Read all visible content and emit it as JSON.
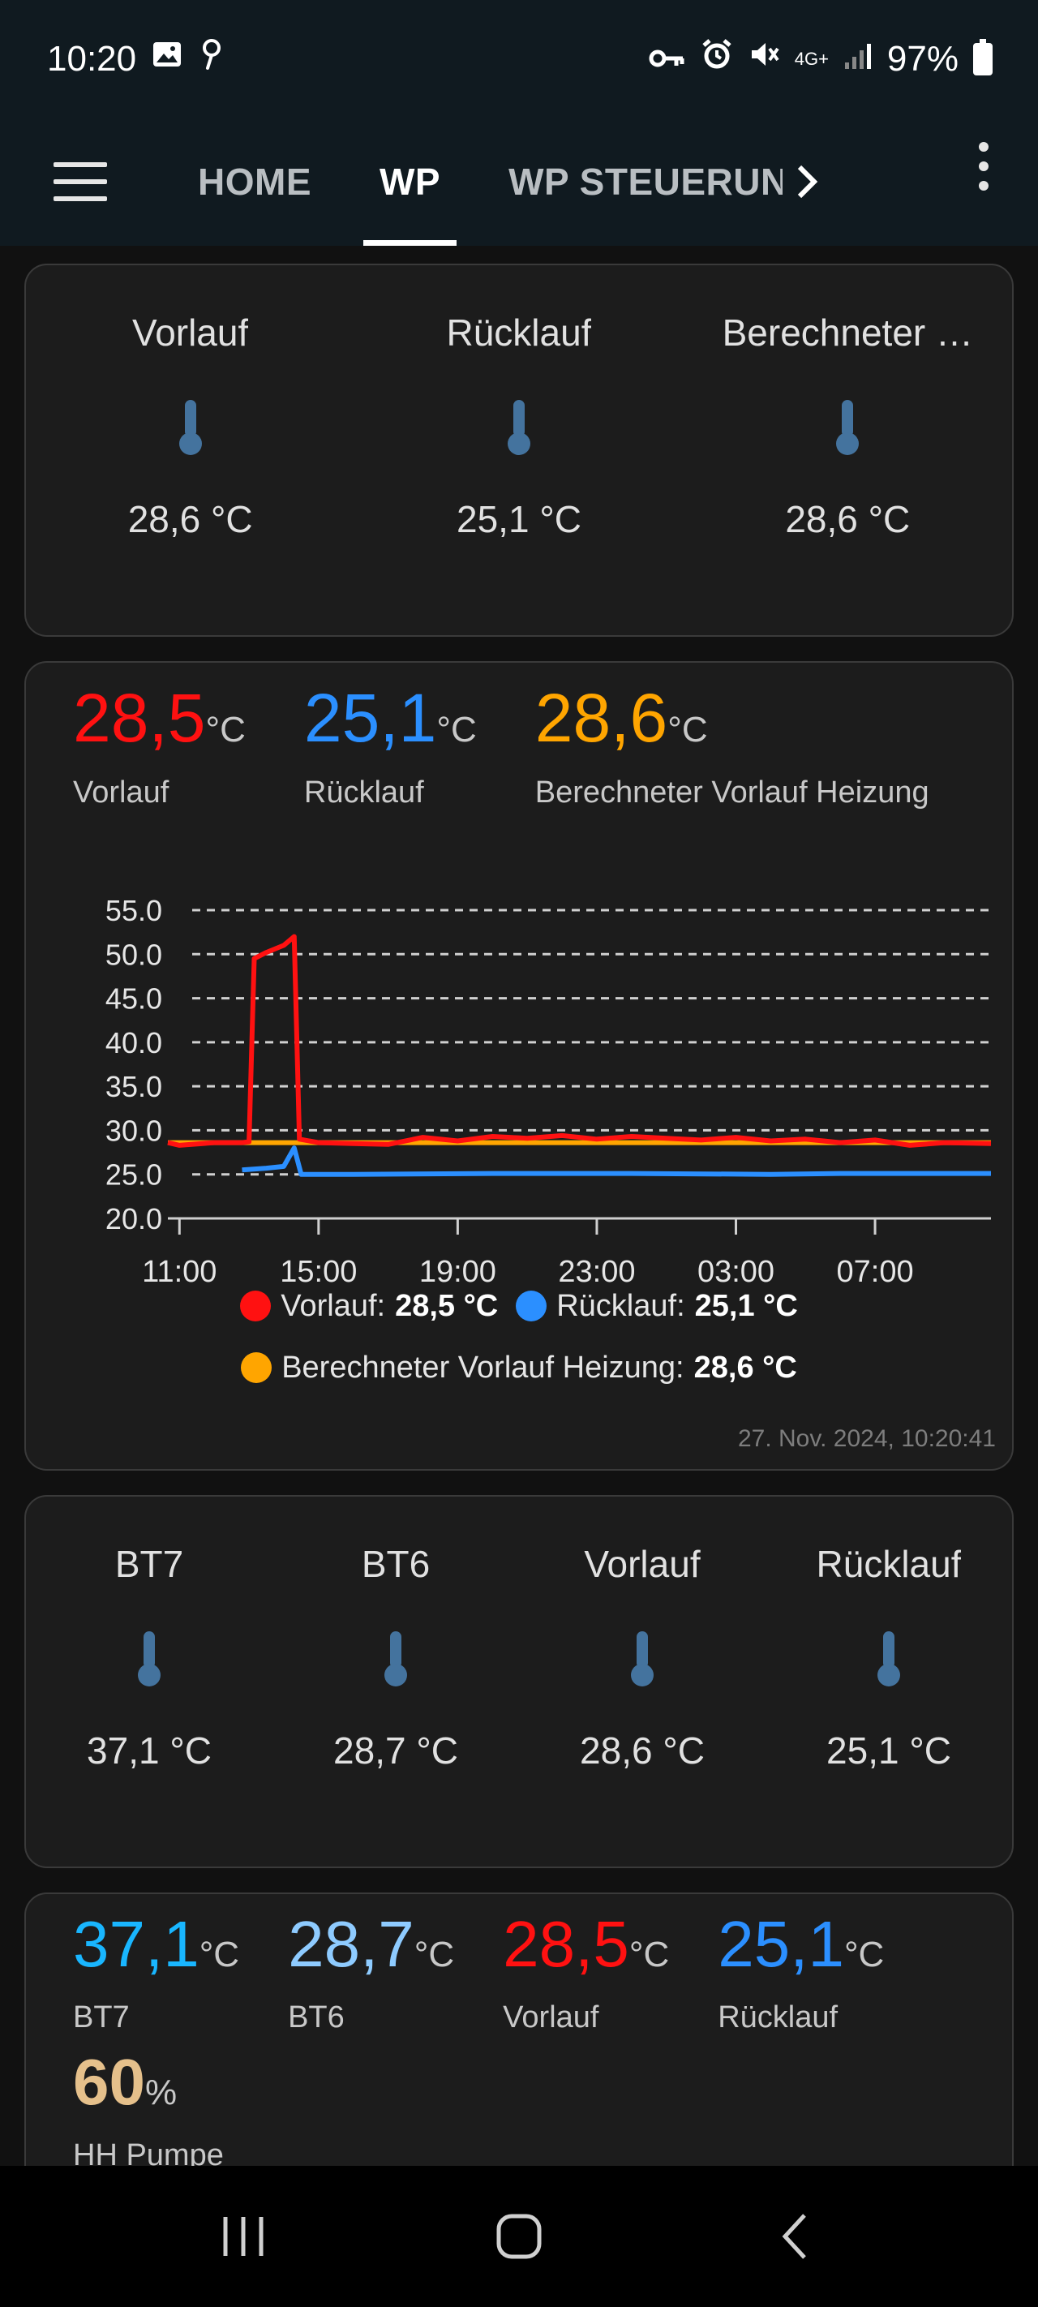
{
  "status_bar": {
    "time": "10:20",
    "network": "4G+",
    "battery": "97%"
  },
  "app_bar": {
    "tabs": [
      {
        "label": "HOME"
      },
      {
        "label": "WP"
      },
      {
        "label": "WP STEUERUNG"
      }
    ]
  },
  "card1": {
    "entities": [
      {
        "name": "Vorlauf",
        "value": "28,6 °C"
      },
      {
        "name": "Rücklauf",
        "value": "25,1 °C"
      },
      {
        "name": "Berechneter …",
        "value": "28,6 °C"
      }
    ]
  },
  "card2": {
    "sensors": [
      {
        "value": "28,5",
        "unit": "°C",
        "label": "Vorlauf",
        "color": "#ff1111"
      },
      {
        "value": "25,1",
        "unit": "°C",
        "label": "Rücklauf",
        "color": "#2b8fff"
      },
      {
        "value": "28,6",
        "unit": "°C",
        "label": "Berechneter Vorlauf Heizung",
        "color": "#ffa500"
      }
    ],
    "legend": [
      {
        "name": "Vorlauf:",
        "value": "28,5 °C",
        "color": "#ff1111"
      },
      {
        "name": "Rücklauf:",
        "value": "25,1 °C",
        "color": "#2b8fff"
      },
      {
        "name": "Berechneter Vorlauf Heizung:",
        "value": "28,6 °C",
        "color": "#ffa500"
      }
    ],
    "timestamp": "27. Nov. 2024, 10:20:41"
  },
  "chart_data": {
    "type": "line",
    "title": "",
    "xlabel": "",
    "ylabel": "",
    "x_ticks": [
      "11:00",
      "15:00",
      "19:00",
      "23:00",
      "03:00",
      "07:00"
    ],
    "y_ticks": [
      "55.0",
      "50.0",
      "45.0",
      "40.0",
      "35.0",
      "30.0",
      "25.0",
      "20.0"
    ],
    "ylim": [
      20,
      55
    ],
    "x_range_hours": [
      10.667,
      34.333
    ],
    "grid": "horizontal-dashed",
    "series": [
      {
        "name": "Vorlauf",
        "color": "#ff1111",
        "points": [
          [
            10.667,
            28.6
          ],
          [
            11.0,
            28.3
          ],
          [
            12.0,
            28.6
          ],
          [
            12.8,
            28.6
          ],
          [
            13.0,
            28.7
          ],
          [
            13.15,
            49.5
          ],
          [
            13.5,
            50.2
          ],
          [
            14.0,
            51.0
          ],
          [
            14.3,
            52.0
          ],
          [
            14.45,
            29.0
          ],
          [
            15.0,
            28.6
          ],
          [
            16.0,
            28.5
          ],
          [
            17.0,
            28.4
          ],
          [
            18.0,
            29.2
          ],
          [
            19.0,
            28.8
          ],
          [
            20.0,
            29.3
          ],
          [
            21.0,
            29.1
          ],
          [
            22.0,
            29.4
          ],
          [
            23.0,
            29.0
          ],
          [
            24.0,
            29.3
          ],
          [
            25.0,
            29.1
          ],
          [
            26.0,
            28.9
          ],
          [
            27.0,
            29.2
          ],
          [
            28.0,
            28.8
          ],
          [
            29.0,
            29.0
          ],
          [
            30.0,
            28.6
          ],
          [
            31.0,
            28.9
          ],
          [
            32.0,
            28.3
          ],
          [
            33.0,
            28.6
          ],
          [
            34.333,
            28.5
          ]
        ]
      },
      {
        "name": "Rücklauf",
        "color": "#2b8fff",
        "points": [
          [
            12.8,
            25.5
          ],
          [
            13.5,
            25.7
          ],
          [
            14.0,
            25.9
          ],
          [
            14.3,
            28.0
          ],
          [
            14.5,
            25.0
          ],
          [
            16.0,
            25.0
          ],
          [
            20.0,
            25.1
          ],
          [
            24.0,
            25.1
          ],
          [
            28.0,
            25.0
          ],
          [
            30.0,
            25.1
          ],
          [
            34.333,
            25.1
          ]
        ]
      },
      {
        "name": "Berechneter Vorlauf Heizung",
        "color": "#ffa500",
        "points": [
          [
            10.667,
            28.6
          ],
          [
            15.0,
            28.6
          ],
          [
            20.0,
            28.6
          ],
          [
            25.0,
            28.6
          ],
          [
            30.0,
            28.6
          ],
          [
            34.333,
            28.6
          ]
        ]
      }
    ]
  },
  "card3": {
    "entities": [
      {
        "name": "BT7",
        "value": "37,1 °C"
      },
      {
        "name": "BT6",
        "value": "28,7 °C"
      },
      {
        "name": "Vorlauf",
        "value": "28,6 °C"
      },
      {
        "name": "Rücklauf",
        "value": "25,1 °C"
      }
    ]
  },
  "card4": {
    "sensors": [
      {
        "value": "37,1",
        "unit": "°C",
        "label": "BT7",
        "color": "#19b6ff"
      },
      {
        "value": "28,7",
        "unit": "°C",
        "label": "BT6",
        "color": "#8ecbff"
      },
      {
        "value": "28,5",
        "unit": "°C",
        "label": "Vorlauf",
        "color": "#ff1111"
      },
      {
        "value": "25,1",
        "unit": "°C",
        "label": "Rücklauf",
        "color": "#2b8fff"
      }
    ],
    "extra": {
      "value": "60",
      "unit": "%",
      "label": "HH Pumpe",
      "color": "#e5c08b"
    }
  },
  "colors": {
    "thermometer": "#44739e",
    "card_bg": "#1c1c1c",
    "appbar_bg": "#101a20"
  }
}
